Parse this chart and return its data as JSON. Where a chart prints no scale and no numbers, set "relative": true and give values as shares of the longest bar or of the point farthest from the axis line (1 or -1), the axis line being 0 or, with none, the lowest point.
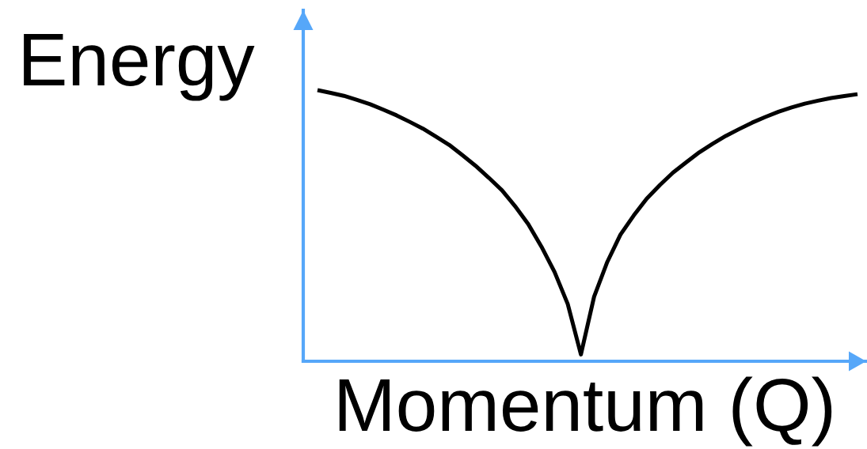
{
  "chart_data": {
    "type": "line",
    "xlabel": "Momentum (Q)",
    "ylabel": "Energy",
    "relative": true,
    "line_style": "solid",
    "categories": [
      null,
      null,
      null,
      null,
      null,
      null,
      null,
      null,
      null,
      null,
      null,
      null,
      null,
      null,
      null,
      null,
      null,
      null,
      null,
      null,
      null,
      null,
      null,
      null,
      null,
      null,
      null,
      null,
      null,
      null,
      null,
      null,
      null,
      null,
      null,
      null,
      null,
      null,
      null,
      null,
      null,
      null
    ],
    "series": [
      {
        "color": "#000000",
        "values": [
          1.0,
          0.99,
          0.979,
          0.964,
          0.948,
          0.928,
          0.907,
          0.883,
          0.858,
          0.828,
          0.798,
          0.76,
          0.721,
          0.677,
          0.631,
          0.572,
          0.506,
          0.423,
          0.329,
          0.211,
          0.025,
          0.238,
          0.366,
          0.467,
          0.537,
          0.6,
          0.65,
          0.696,
          0.734,
          0.771,
          0.802,
          0.831,
          0.856,
          0.88,
          0.901,
          0.92,
          0.936,
          0.95,
          0.961,
          0.971,
          0.978,
          0.985
        ]
      }
    ]
  }
}
